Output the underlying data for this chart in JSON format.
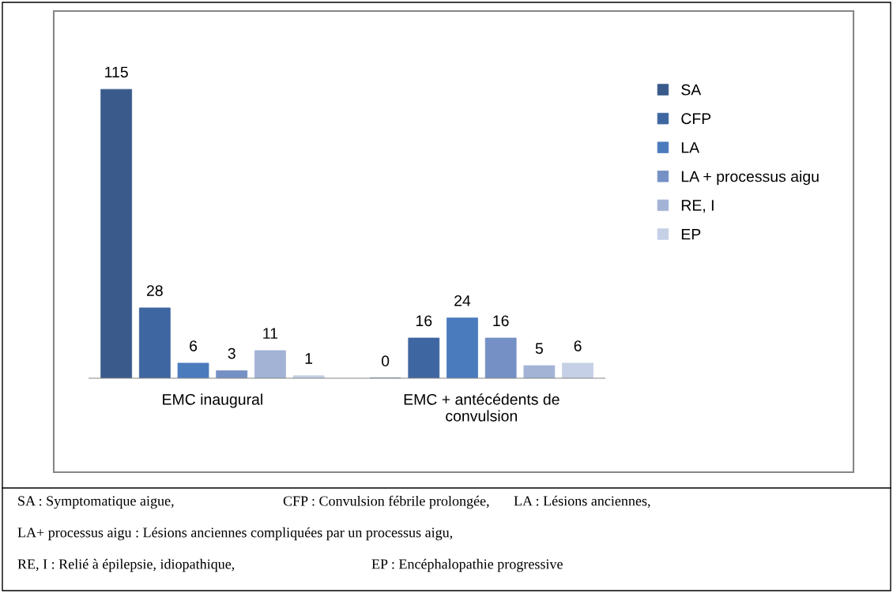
{
  "chart_data": {
    "type": "bar",
    "categories": [
      "EMC inaugural",
      "EMC + antécédents de\nconvulsion"
    ],
    "series": [
      {
        "name": "SA",
        "color": "#3a5a8c",
        "values": [
          115,
          0
        ]
      },
      {
        "name": "CFP",
        "color": "#3e66a0",
        "values": [
          28,
          16
        ]
      },
      {
        "name": "LA",
        "color": "#4a7bbd",
        "values": [
          6,
          24
        ]
      },
      {
        "name": "LA + processus aigu",
        "color": "#7590c4",
        "values": [
          3,
          16
        ]
      },
      {
        "name": "RE, I",
        "color": "#a2b3d6",
        "values": [
          11,
          5
        ]
      },
      {
        "name": "EP",
        "color": "#c5cfe5",
        "values": [
          1,
          6
        ]
      }
    ],
    "data_labels": true,
    "legend": "right",
    "grid": false,
    "tick_labels": "x",
    "annotations": [
      "SA : Symptomatique aigue,",
      "CFP : Convulsion fébrile prolongée,",
      "LA : Lésions anciennes,",
      "LA+ processus aigu : Lésions anciennes compliquées par un processus aigu,",
      "RE, I : Relié à épilepsie, idiopathique,",
      "EP : Encéphalopathie progressive"
    ]
  }
}
